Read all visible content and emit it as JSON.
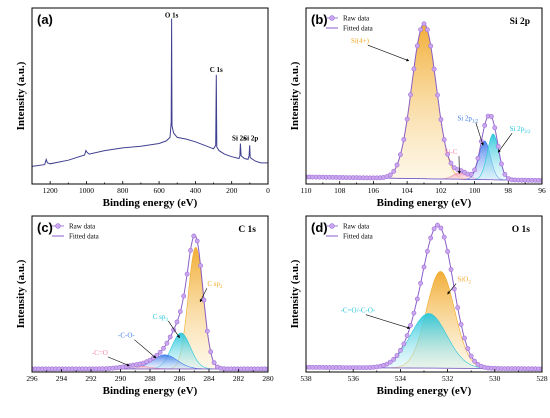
{
  "colors": {
    "raw": "#a070d8",
    "raw_fill": "#c9a6ee",
    "fitted": "#8a5fc8",
    "orange": "#f1a92b",
    "cyan": "#27c6db",
    "blue": "#3f7bea",
    "pink": "#f08aa8",
    "navy_line": "#404090",
    "arrow": "#000000"
  },
  "chart_data": [
    {
      "id": "a",
      "type": "line",
      "panel_label": "(a)",
      "title": "",
      "xlabel": "Binding energy (eV)",
      "ylabel": "Intensity (a.u.)",
      "xlim": [
        1300,
        0
      ],
      "xticks": [
        1200,
        1000,
        800,
        600,
        400,
        200,
        0
      ],
      "ylim": [
        0,
        1
      ],
      "annotations": [
        {
          "text": "O 1s",
          "x": 531,
          "y": 0.93
        },
        {
          "text": "C 1s",
          "x": 285,
          "y": 0.62
        },
        {
          "text": "Si 2s",
          "x": 160,
          "y": 0.23
        },
        {
          "text": "Si 2p",
          "x": 95,
          "y": 0.23
        }
      ],
      "series": [
        {
          "color_key": "navy_line",
          "x": [
            1300,
            1230,
            1222,
            1215,
            1200,
            1100,
            1010,
            1003,
            997,
            985,
            900,
            800,
            700,
            600,
            560,
            540,
            533,
            531,
            529,
            520,
            500,
            450,
            400,
            350,
            300,
            288,
            285,
            282,
            270,
            240,
            200,
            160,
            155,
            152,
            148,
            130,
            110,
            104,
            101,
            98,
            70,
            40,
            20,
            0
          ],
          "y": [
            0.1,
            0.11,
            0.14,
            0.12,
            0.115,
            0.135,
            0.165,
            0.19,
            0.18,
            0.17,
            0.19,
            0.205,
            0.215,
            0.23,
            0.245,
            0.265,
            0.35,
            0.94,
            0.33,
            0.29,
            0.265,
            0.255,
            0.24,
            0.22,
            0.2,
            0.22,
            0.62,
            0.21,
            0.19,
            0.17,
            0.155,
            0.145,
            0.16,
            0.23,
            0.16,
            0.145,
            0.14,
            0.16,
            0.22,
            0.15,
            0.13,
            0.12,
            0.12,
            0.12
          ]
        }
      ]
    },
    {
      "id": "b",
      "type": "line",
      "panel_label": "(b)",
      "title": "Si 2p",
      "xlabel": "Binding energy (eV)",
      "ylabel": "Intensity (a.u.)",
      "xlim": [
        110,
        96
      ],
      "xticks": [
        110,
        108,
        106,
        104,
        102,
        100,
        98,
        96
      ],
      "ylim": [
        0,
        1
      ],
      "legend": [
        {
          "text": "Raw data",
          "kind": "marker"
        },
        {
          "text": "Fitted data",
          "kind": "line"
        }
      ],
      "baseline": {
        "x": [
          110,
          96
        ],
        "y": [
          0.04,
          0.02
        ]
      },
      "components": [
        {
          "name": "Si(4+)",
          "color_key": "orange",
          "center": 103.0,
          "fwhm": 1.7,
          "height": 0.88
        },
        {
          "name": "Si-C",
          "color_key": "pink",
          "center": 100.8,
          "fwhm": 1.0,
          "height": 0.04
        },
        {
          "name": "Si 2p1/2",
          "label": "Si 2p",
          "sub": "1/2",
          "color_key": "blue",
          "center": 99.4,
          "fwhm": 0.8,
          "height": 0.22
        },
        {
          "name": "Si 2p3/2",
          "label": "Si 2p",
          "sub": "3/2",
          "color_key": "cyan",
          "center": 98.9,
          "fwhm": 0.8,
          "height": 0.26
        }
      ],
      "labels": [
        {
          "text": "Si(4+)",
          "color_key": "orange",
          "x": 106.8,
          "y": 0.8,
          "ax": 103.9,
          "ay": 0.7
        },
        {
          "text": "Si-C",
          "color_key": "pink",
          "x": 101.4,
          "y": 0.17,
          "ax": 100.9,
          "ay": 0.06
        },
        {
          "text": "Si 2p",
          "sub": "1/2",
          "color_key": "blue",
          "x": 100.4,
          "y": 0.36,
          "ax": 99.5,
          "ay": 0.22
        },
        {
          "text": "Si 2p",
          "sub": "3/2",
          "color_key": "cyan",
          "x": 97.3,
          "y": 0.3,
          "ax": 98.6,
          "ay": 0.18
        }
      ]
    },
    {
      "id": "c",
      "type": "line",
      "panel_label": "(c)",
      "title": "C 1s",
      "xlabel": "Binding energy (eV)",
      "ylabel": "Intensity (a.u.)",
      "xlim": [
        296,
        280
      ],
      "xticks": [
        296,
        294,
        292,
        290,
        288,
        286,
        284,
        282,
        280
      ],
      "ylim": [
        0,
        1
      ],
      "legend": [
        {
          "text": "Raw data",
          "kind": "marker"
        },
        {
          "text": "Fitted data",
          "kind": "line"
        }
      ],
      "baseline": {
        "x": [
          296,
          280
        ],
        "y": [
          0.02,
          0.02
        ]
      },
      "components": [
        {
          "name": "C sp2",
          "label": "C sp",
          "sub": "2",
          "color_key": "orange",
          "center": 284.9,
          "fwhm": 1.2,
          "height": 0.78
        },
        {
          "name": "C sp3",
          "label": "C sp",
          "sub": "3",
          "color_key": "cyan",
          "center": 285.9,
          "fwhm": 1.5,
          "height": 0.23
        },
        {
          "name": "-C-O-",
          "color_key": "blue",
          "center": 287.0,
          "fwhm": 2.0,
          "height": 0.09
        },
        {
          "name": "-C=O",
          "color_key": "pink",
          "center": 289.0,
          "fwhm": 2.0,
          "height": 0.02
        }
      ],
      "labels": [
        {
          "text": "C sp",
          "sub": "2",
          "color_key": "orange",
          "x": 283.6,
          "y": 0.55,
          "ax": 284.6,
          "ay": 0.45
        },
        {
          "text": "C sp",
          "sub": "3",
          "color_key": "cyan",
          "x": 287.3,
          "y": 0.34,
          "ax": 286.0,
          "ay": 0.22
        },
        {
          "text": "-C-O-",
          "color_key": "blue",
          "x": 289.6,
          "y": 0.22,
          "ax": 287.6,
          "ay": 0.09
        },
        {
          "text": "-C=O",
          "color_key": "pink",
          "x": 291.4,
          "y": 0.11,
          "ax": 289.4,
          "ay": 0.04
        }
      ]
    },
    {
      "id": "d",
      "type": "line",
      "panel_label": "(d)",
      "title": "O 1s",
      "xlabel": "Binding energy (eV)",
      "ylabel": "Intensity (a.u.)",
      "xlim": [
        538,
        528
      ],
      "xticks": [
        538,
        536,
        534,
        532,
        530,
        528
      ],
      "ylim": [
        0,
        1
      ],
      "legend": [
        {
          "text": "Raw data",
          "kind": "marker"
        },
        {
          "text": "Fitted data",
          "kind": "line"
        }
      ],
      "baseline": {
        "x": [
          538,
          528
        ],
        "y": [
          0.03,
          0.02
        ]
      },
      "components": [
        {
          "name": "SiO2",
          "label": "SiO",
          "sub": "2",
          "color_key": "orange",
          "center": 532.3,
          "fwhm": 1.4,
          "height": 0.62
        },
        {
          "name": "-C=O/-C-O-",
          "color_key": "cyan",
          "center": 532.8,
          "fwhm": 1.8,
          "height": 0.35
        }
      ],
      "labels": [
        {
          "text": "SiO",
          "sub": "2",
          "color_key": "orange",
          "x": 531.3,
          "y": 0.58,
          "ax": 532.0,
          "ay": 0.5
        },
        {
          "text": "-C=O/-C-O-",
          "color_key": "cyan",
          "x": 535.8,
          "y": 0.38,
          "ax": 533.6,
          "ay": 0.28
        }
      ]
    }
  ]
}
